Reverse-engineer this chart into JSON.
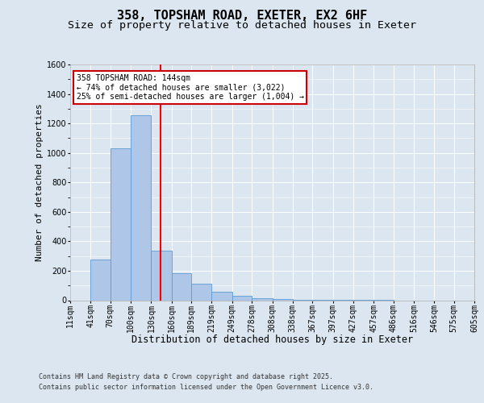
{
  "title1": "358, TOPSHAM ROAD, EXETER, EX2 6HF",
  "title2": "Size of property relative to detached houses in Exeter",
  "xlabel": "Distribution of detached houses by size in Exeter",
  "ylabel": "Number of detached properties",
  "bin_edges": [
    11,
    41,
    70,
    100,
    130,
    160,
    189,
    219,
    249,
    278,
    308,
    338,
    367,
    397,
    427,
    457,
    486,
    516,
    546,
    575,
    605
  ],
  "bar_heights": [
    0,
    275,
    1030,
    1255,
    335,
    185,
    110,
    55,
    30,
    15,
    10,
    5,
    3,
    2,
    1,
    1,
    0,
    0,
    0,
    0
  ],
  "bar_color": "#aec6e8",
  "bar_edge_color": "#5b9bd5",
  "red_line_x": 144,
  "ylim": [
    0,
    1600
  ],
  "annotation_text": "358 TOPSHAM ROAD: 144sqm\n← 74% of detached houses are smaller (3,022)\n25% of semi-detached houses are larger (1,004) →",
  "annotation_box_color": "#ffffff",
  "annotation_box_edge": "#cc0000",
  "bg_color": "#dce6f1",
  "plot_bg_color": "#dce6f1",
  "grid_color": "#ffffff",
  "footer1": "Contains HM Land Registry data © Crown copyright and database right 2025.",
  "footer2": "Contains public sector information licensed under the Open Government Licence v3.0.",
  "title1_fontsize": 11,
  "title2_fontsize": 9.5,
  "tick_fontsize": 7,
  "ylabel_fontsize": 8,
  "xlabel_fontsize": 8.5,
  "annotation_fontsize": 7,
  "footer_fontsize": 6
}
